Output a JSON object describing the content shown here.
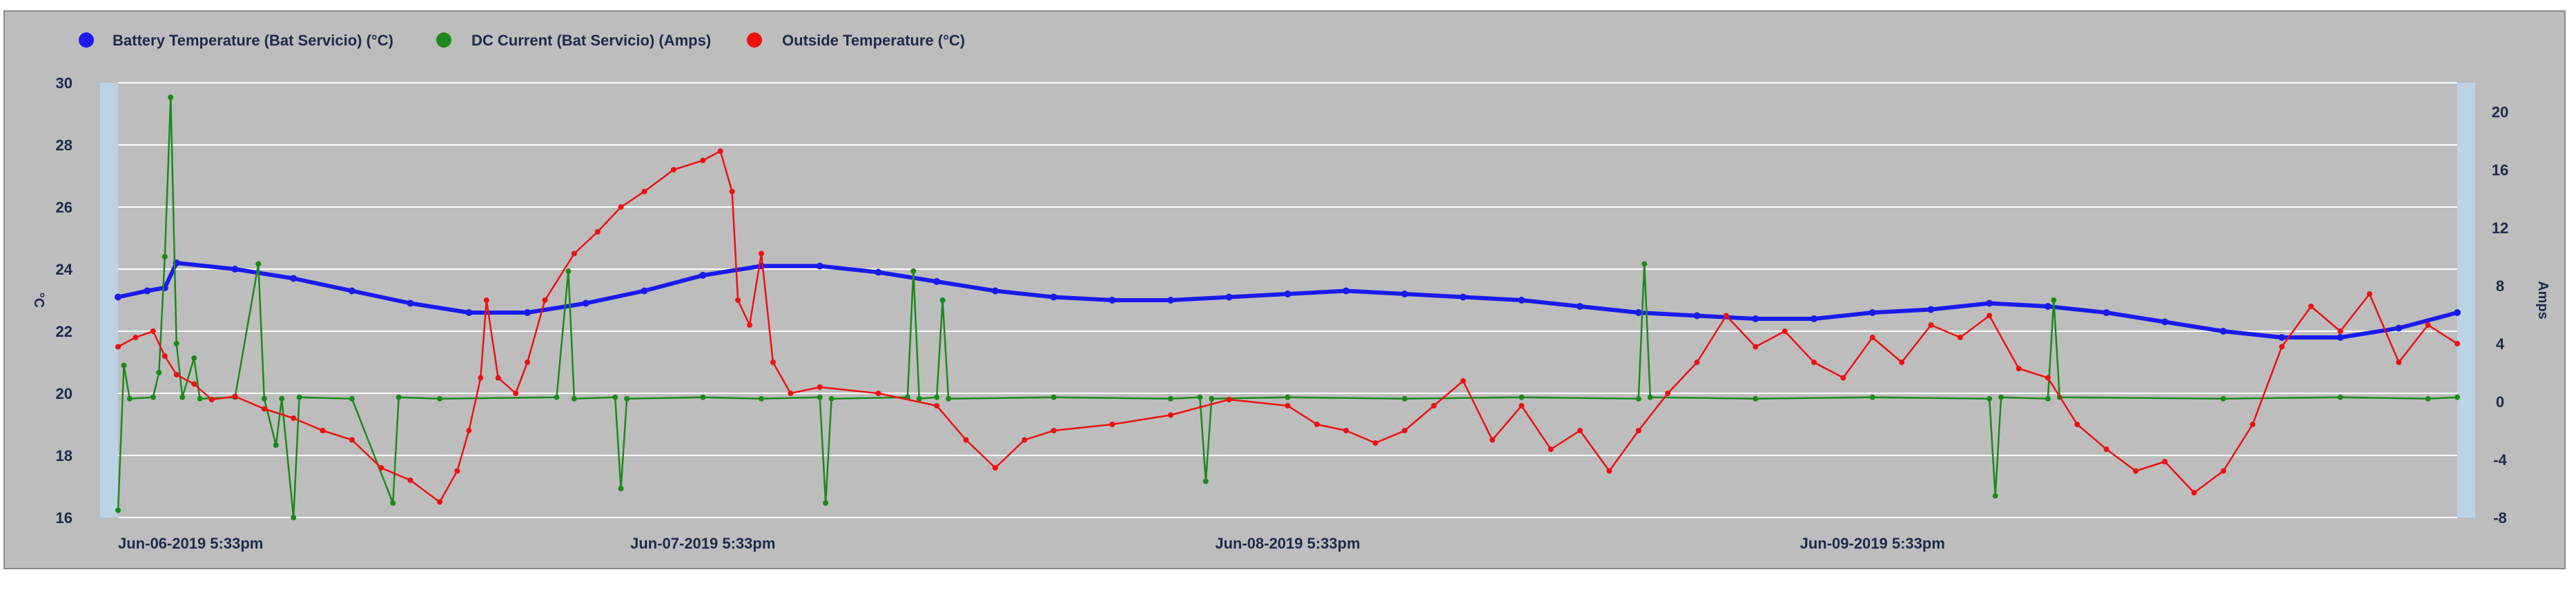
{
  "chart_data": {
    "type": "line",
    "legend": {
      "placement": "top-left"
    },
    "grid": true,
    "x_ticks": [
      "Jun-06-2019 5:33pm",
      "Jun-07-2019 5:33pm",
      "Jun-08-2019 5:33pm",
      "Jun-09-2019 5:33pm"
    ],
    "x_range": [
      0,
      4
    ],
    "y_left": {
      "label": "°C",
      "range": [
        16,
        30
      ],
      "ticks": [
        16,
        18,
        20,
        22,
        24,
        26,
        28,
        30
      ]
    },
    "y_right": {
      "label": "Amps",
      "range": [
        -8,
        22
      ],
      "ticks": [
        -8,
        -4,
        0,
        4,
        8,
        12,
        16,
        20
      ]
    },
    "series": [
      {
        "name": "Battery Temperature (Bat Servicio) (°C)",
        "color": "#1a1aee",
        "axis": "left",
        "points": [
          [
            0.0,
            23.1
          ],
          [
            0.05,
            23.3
          ],
          [
            0.08,
            23.4
          ],
          [
            0.1,
            24.2
          ],
          [
            0.2,
            24.0
          ],
          [
            0.3,
            23.7
          ],
          [
            0.4,
            23.3
          ],
          [
            0.5,
            22.9
          ],
          [
            0.6,
            22.6
          ],
          [
            0.7,
            22.6
          ],
          [
            0.8,
            22.9
          ],
          [
            0.9,
            23.3
          ],
          [
            1.0,
            23.8
          ],
          [
            1.1,
            24.1
          ],
          [
            1.2,
            24.1
          ],
          [
            1.3,
            23.9
          ],
          [
            1.4,
            23.6
          ],
          [
            1.5,
            23.3
          ],
          [
            1.6,
            23.1
          ],
          [
            1.7,
            23.0
          ],
          [
            1.8,
            23.0
          ],
          [
            1.9,
            23.1
          ],
          [
            2.0,
            23.2
          ],
          [
            2.1,
            23.3
          ],
          [
            2.2,
            23.2
          ],
          [
            2.3,
            23.1
          ],
          [
            2.4,
            23.0
          ],
          [
            2.5,
            22.8
          ],
          [
            2.6,
            22.6
          ],
          [
            2.7,
            22.5
          ],
          [
            2.8,
            22.4
          ],
          [
            2.9,
            22.4
          ],
          [
            3.0,
            22.6
          ],
          [
            3.1,
            22.7
          ],
          [
            3.2,
            22.9
          ],
          [
            3.3,
            22.8
          ],
          [
            3.4,
            22.6
          ],
          [
            3.5,
            22.3
          ],
          [
            3.6,
            22.0
          ],
          [
            3.7,
            21.8
          ],
          [
            3.8,
            21.8
          ],
          [
            3.9,
            22.1
          ],
          [
            4.0,
            22.6
          ]
        ]
      },
      {
        "name": "DC Current (Bat Servicio) (Amps)",
        "color": "#1a8a1a",
        "axis": "right",
        "points": [
          [
            0.0,
            -7.5
          ],
          [
            0.01,
            2.5
          ],
          [
            0.02,
            0.2
          ],
          [
            0.06,
            0.3
          ],
          [
            0.07,
            2.0
          ],
          [
            0.08,
            10.0
          ],
          [
            0.09,
            21.0
          ],
          [
            0.1,
            4.0
          ],
          [
            0.11,
            0.3
          ],
          [
            0.13,
            3.0
          ],
          [
            0.14,
            0.2
          ],
          [
            0.2,
            0.3
          ],
          [
            0.24,
            9.5
          ],
          [
            0.25,
            0.2
          ],
          [
            0.27,
            -3.0
          ],
          [
            0.28,
            0.2
          ],
          [
            0.3,
            -8.0
          ],
          [
            0.31,
            0.3
          ],
          [
            0.4,
            0.2
          ],
          [
            0.47,
            -7.0
          ],
          [
            0.48,
            0.3
          ],
          [
            0.55,
            0.2
          ],
          [
            0.75,
            0.3
          ],
          [
            0.77,
            9.0
          ],
          [
            0.78,
            0.2
          ],
          [
            0.85,
            0.3
          ],
          [
            0.86,
            -6.0
          ],
          [
            0.87,
            0.2
          ],
          [
            1.0,
            0.3
          ],
          [
            1.1,
            0.2
          ],
          [
            1.2,
            0.3
          ],
          [
            1.21,
            -7.0
          ],
          [
            1.22,
            0.2
          ],
          [
            1.35,
            0.3
          ],
          [
            1.36,
            9.0
          ],
          [
            1.37,
            0.2
          ],
          [
            1.4,
            0.3
          ],
          [
            1.41,
            7.0
          ],
          [
            1.42,
            0.2
          ],
          [
            1.6,
            0.3
          ],
          [
            1.8,
            0.2
          ],
          [
            1.85,
            0.3
          ],
          [
            1.86,
            -5.5
          ],
          [
            1.87,
            0.2
          ],
          [
            2.0,
            0.3
          ],
          [
            2.2,
            0.2
          ],
          [
            2.4,
            0.3
          ],
          [
            2.6,
            0.2
          ],
          [
            2.61,
            9.5
          ],
          [
            2.62,
            0.3
          ],
          [
            2.8,
            0.2
          ],
          [
            3.0,
            0.3
          ],
          [
            3.2,
            0.2
          ],
          [
            3.21,
            -6.5
          ],
          [
            3.22,
            0.3
          ],
          [
            3.3,
            0.2
          ],
          [
            3.31,
            7.0
          ],
          [
            3.32,
            0.3
          ],
          [
            3.6,
            0.2
          ],
          [
            3.8,
            0.3
          ],
          [
            3.95,
            0.2
          ],
          [
            4.0,
            0.3
          ]
        ]
      },
      {
        "name": "Outside Temperature (°C)",
        "color": "#ee1111",
        "axis": "left",
        "points": [
          [
            0.0,
            21.5
          ],
          [
            0.03,
            21.8
          ],
          [
            0.06,
            22.0
          ],
          [
            0.08,
            21.2
          ],
          [
            0.1,
            20.6
          ],
          [
            0.13,
            20.3
          ],
          [
            0.16,
            19.8
          ],
          [
            0.2,
            19.9
          ],
          [
            0.25,
            19.5
          ],
          [
            0.3,
            19.2
          ],
          [
            0.35,
            18.8
          ],
          [
            0.4,
            18.5
          ],
          [
            0.45,
            17.6
          ],
          [
            0.5,
            17.2
          ],
          [
            0.55,
            16.5
          ],
          [
            0.58,
            17.5
          ],
          [
            0.6,
            18.8
          ],
          [
            0.62,
            20.5
          ],
          [
            0.63,
            23.0
          ],
          [
            0.65,
            20.5
          ],
          [
            0.68,
            20.0
          ],
          [
            0.7,
            21.0
          ],
          [
            0.73,
            23.0
          ],
          [
            0.78,
            24.5
          ],
          [
            0.82,
            25.2
          ],
          [
            0.86,
            26.0
          ],
          [
            0.9,
            26.5
          ],
          [
            0.95,
            27.2
          ],
          [
            1.0,
            27.5
          ],
          [
            1.03,
            27.8
          ],
          [
            1.05,
            26.5
          ],
          [
            1.06,
            23.0
          ],
          [
            1.08,
            22.2
          ],
          [
            1.1,
            24.5
          ],
          [
            1.12,
            21.0
          ],
          [
            1.15,
            20.0
          ],
          [
            1.2,
            20.2
          ],
          [
            1.3,
            20.0
          ],
          [
            1.4,
            19.6
          ],
          [
            1.45,
            18.5
          ],
          [
            1.5,
            17.6
          ],
          [
            1.55,
            18.5
          ],
          [
            1.6,
            18.8
          ],
          [
            1.7,
            19.0
          ],
          [
            1.8,
            19.3
          ],
          [
            1.9,
            19.8
          ],
          [
            2.0,
            19.6
          ],
          [
            2.05,
            19.0
          ],
          [
            2.1,
            18.8
          ],
          [
            2.15,
            18.4
          ],
          [
            2.2,
            18.8
          ],
          [
            2.25,
            19.6
          ],
          [
            2.3,
            20.4
          ],
          [
            2.35,
            18.5
          ],
          [
            2.4,
            19.6
          ],
          [
            2.45,
            18.2
          ],
          [
            2.5,
            18.8
          ],
          [
            2.55,
            17.5
          ],
          [
            2.6,
            18.8
          ],
          [
            2.65,
            20.0
          ],
          [
            2.7,
            21.0
          ],
          [
            2.75,
            22.5
          ],
          [
            2.8,
            21.5
          ],
          [
            2.85,
            22.0
          ],
          [
            2.9,
            21.0
          ],
          [
            2.95,
            20.5
          ],
          [
            3.0,
            21.8
          ],
          [
            3.05,
            21.0
          ],
          [
            3.1,
            22.2
          ],
          [
            3.15,
            21.8
          ],
          [
            3.2,
            22.5
          ],
          [
            3.25,
            20.8
          ],
          [
            3.3,
            20.5
          ],
          [
            3.35,
            19.0
          ],
          [
            3.4,
            18.2
          ],
          [
            3.45,
            17.5
          ],
          [
            3.5,
            17.8
          ],
          [
            3.55,
            16.8
          ],
          [
            3.6,
            17.5
          ],
          [
            3.65,
            19.0
          ],
          [
            3.7,
            21.5
          ],
          [
            3.75,
            22.8
          ],
          [
            3.8,
            22.0
          ],
          [
            3.85,
            23.2
          ],
          [
            3.9,
            21.0
          ],
          [
            3.95,
            22.2
          ],
          [
            4.0,
            21.6
          ]
        ]
      }
    ]
  }
}
